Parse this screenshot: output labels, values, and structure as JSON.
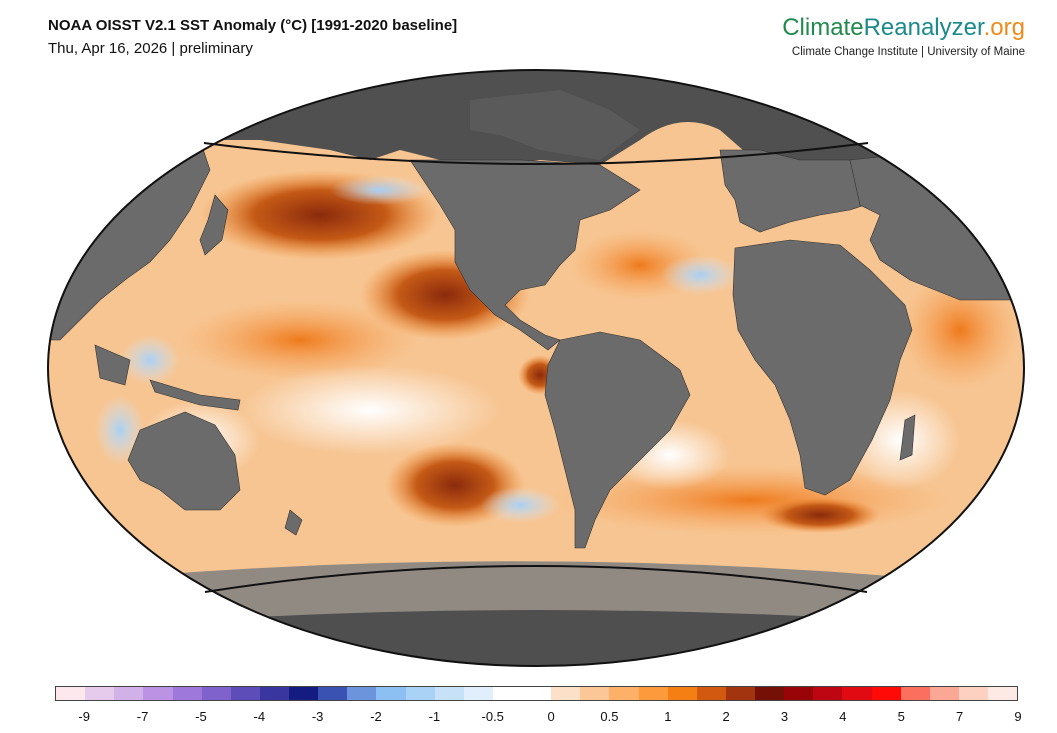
{
  "header": {
    "title": "NOAA OISST V2.1 SST Anomaly (°C) [1991-2020 baseline]",
    "subtitle": "Thu, Apr 16, 2026 | preliminary"
  },
  "brand": {
    "logo_part1": "Climate",
    "logo_part2": "Reanalyzer",
    "logo_part3": ".org",
    "tagline": "Climate Change Institute | University of Maine"
  },
  "legend": {
    "unit": "°C",
    "colors": [
      "#fde8ee",
      "#e7cbec",
      "#d2b1e8",
      "#bb92e4",
      "#9f78dc",
      "#7f62cc",
      "#5d4db8",
      "#3a36a0",
      "#141c82",
      "#3a53b2",
      "#6b94dc",
      "#8dc0f2",
      "#a9d2f6",
      "#c6e1f8",
      "#e1eefb",
      "#ffffff",
      "#ffffff",
      "#fde0c8",
      "#fcc796",
      "#fcb068",
      "#fc9a3c",
      "#f57f12",
      "#d15a10",
      "#a23410",
      "#751006",
      "#990408",
      "#be0612",
      "#e10a12",
      "#ff0a06",
      "#fa6f5e",
      "#fba796",
      "#fdd1c2",
      "#feeae4"
    ],
    "tick_labels": [
      "-9",
      "-7",
      "-5",
      "-4",
      "-3",
      "-2",
      "-1",
      "-0.5",
      "0",
      "0.5",
      "1",
      "2",
      "3",
      "4",
      "5",
      "7",
      "9"
    ]
  },
  "map": {
    "projection": "Robinson-like world map",
    "land_color": "#6e6e6e",
    "polar_land_color": "#4f4f4f",
    "ocean_base_color": "#f6c89a"
  }
}
